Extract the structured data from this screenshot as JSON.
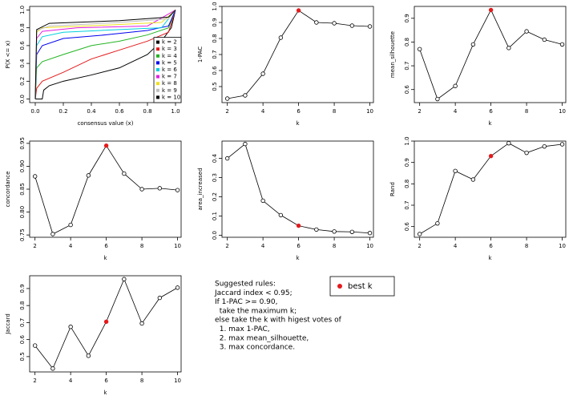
{
  "chart_data": [
    {
      "type": "ecdf",
      "x_label": "consensus value (x)",
      "y_label": "P(X <= x)",
      "xlim": [
        -0.04,
        1.04
      ],
      "ylim": [
        -0.04,
        1.04
      ],
      "xticks": [
        {
          "value": 0,
          "label": "0.0"
        },
        0.2,
        0.4,
        0.6,
        0.8,
        {
          "value": 1,
          "label": "1.0"
        }
      ],
      "yticks": [
        {
          "value": 0,
          "label": "0.0"
        },
        0.2,
        0.4,
        0.6,
        0.8,
        {
          "value": 1,
          "label": "1.0"
        }
      ],
      "legend": "bottomright",
      "series": [
        {
          "name": "k = 2",
          "color": "#000000",
          "x": [
            0,
            0.05,
            0.06,
            0.1,
            0.2,
            0.4,
            0.6,
            0.8,
            0.9,
            0.97,
            1
          ],
          "values": [
            0,
            0,
            0.1,
            0.15,
            0.2,
            0.27,
            0.35,
            0.5,
            0.65,
            0.8,
            1
          ]
        },
        {
          "name": "k = 3",
          "color": "#e41a1c",
          "x": [
            0,
            0.01,
            0.05,
            0.2,
            0.4,
            0.6,
            0.8,
            0.95,
            1
          ],
          "values": [
            0,
            0.12,
            0.2,
            0.3,
            0.45,
            0.55,
            0.65,
            0.75,
            1
          ]
        },
        {
          "name": "k = 4",
          "color": "#22b422",
          "x": [
            0,
            0.01,
            0.05,
            0.2,
            0.4,
            0.6,
            0.8,
            0.95,
            1
          ],
          "values": [
            0,
            0.35,
            0.42,
            0.5,
            0.6,
            0.65,
            0.72,
            0.8,
            1
          ]
        },
        {
          "name": "k = 5",
          "color": "#0000ee",
          "x": [
            0,
            0.01,
            0.05,
            0.2,
            0.5,
            0.8,
            0.95,
            1
          ],
          "values": [
            0,
            0.5,
            0.6,
            0.68,
            0.72,
            0.77,
            0.82,
            1
          ]
        },
        {
          "name": "k = 6",
          "color": "#00d0e0",
          "x": [
            0,
            0.01,
            0.05,
            0.2,
            0.6,
            0.9,
            1
          ],
          "values": [
            0,
            0.6,
            0.7,
            0.75,
            0.78,
            0.8,
            1
          ]
        },
        {
          "name": "k = 7",
          "color": "#e020e0",
          "x": [
            0,
            0.01,
            0.05,
            0.3,
            0.8,
            1
          ],
          "values": [
            0,
            0.68,
            0.76,
            0.8,
            0.82,
            1
          ]
        },
        {
          "name": "k = 8",
          "color": "#f0e020",
          "x": [
            0,
            0.01,
            0.05,
            0.5,
            0.9,
            1
          ],
          "values": [
            0,
            0.75,
            0.8,
            0.83,
            0.86,
            1
          ]
        },
        {
          "name": "k = 9",
          "color": "#bebebe",
          "x": [
            0,
            0.01,
            0.1,
            0.6,
            0.95,
            1
          ],
          "values": [
            0,
            0.77,
            0.82,
            0.86,
            0.9,
            1
          ]
        },
        {
          "name": "k = 10",
          "color": "#000000",
          "x": [
            0,
            0.01,
            0.1,
            0.6,
            0.95,
            1
          ],
          "values": [
            0,
            0.78,
            0.85,
            0.88,
            0.92,
            1
          ]
        }
      ]
    },
    {
      "type": "line",
      "x_label": "k",
      "y_label": "1-PAC",
      "x": [
        2,
        3,
        4,
        5,
        6,
        7,
        8,
        9,
        10
      ],
      "values": [
        0.425,
        0.445,
        0.58,
        0.805,
        0.975,
        0.9,
        0.895,
        0.88,
        0.875
      ],
      "best_k": 6,
      "highlight_color": "#e41a1c",
      "xlim": [
        1.7,
        10.2
      ],
      "ylim": [
        0.4,
        1.0
      ],
      "xticks": [
        2,
        4,
        6,
        8,
        10
      ],
      "yticks": [
        0.5,
        0.6,
        0.7,
        0.8,
        0.9,
        {
          "value": 1,
          "label": "1.0"
        }
      ]
    },
    {
      "type": "line",
      "x_label": "k",
      "y_label": "mean_silhouette",
      "x": [
        2,
        3,
        4,
        5,
        6,
        7,
        8,
        9,
        10
      ],
      "values": [
        0.77,
        0.56,
        0.615,
        0.79,
        0.935,
        0.775,
        0.845,
        0.81,
        0.79
      ],
      "best_k": 6,
      "highlight_color": "#e41a1c",
      "xlim": [
        1.7,
        10.2
      ],
      "ylim": [
        0.545,
        0.95
      ],
      "xticks": [
        2,
        4,
        6,
        8,
        10
      ],
      "yticks": [
        0.6,
        0.7,
        0.8,
        0.9
      ]
    },
    {
      "type": "line",
      "x_label": "k",
      "y_label": "concordance",
      "x": [
        2,
        3,
        4,
        5,
        6,
        7,
        8,
        9,
        10
      ],
      "values": [
        0.878,
        0.752,
        0.772,
        0.88,
        0.945,
        0.884,
        0.85,
        0.852,
        0.848
      ],
      "best_k": 6,
      "highlight_color": "#e41a1c",
      "xlim": [
        1.7,
        10.2
      ],
      "ylim": [
        0.745,
        0.955
      ],
      "xticks": [
        2,
        4,
        6,
        8,
        10
      ],
      "yticks": [
        0.75,
        {
          "value": 0.8,
          "label": "0.80"
        },
        0.85,
        {
          "value": 0.9,
          "label": "0.90"
        },
        0.95
      ]
    },
    {
      "type": "line",
      "x_label": "k",
      "y_label": "area_increased",
      "x": [
        2,
        3,
        4,
        5,
        6,
        7,
        8,
        9,
        10
      ],
      "values": [
        0.4,
        0.475,
        0.18,
        0.105,
        0.05,
        0.03,
        0.02,
        0.018,
        0.012
      ],
      "best_k": 6,
      "highlight_color": "#e41a1c",
      "xlim": [
        1.7,
        10.2
      ],
      "ylim": [
        -0.01,
        0.49
      ],
      "xticks": [
        2,
        4,
        6,
        8,
        10
      ],
      "yticks": [
        {
          "value": 0,
          "label": "0.0"
        },
        0.1,
        0.2,
        0.3,
        0.4
      ]
    },
    {
      "type": "line",
      "x_label": "k",
      "y_label": "Rand",
      "x": [
        2,
        3,
        4,
        5,
        6,
        7,
        8,
        9,
        10
      ],
      "values": [
        0.565,
        0.615,
        0.86,
        0.82,
        0.93,
        0.99,
        0.945,
        0.975,
        0.985
      ],
      "best_k": 6,
      "highlight_color": "#e41a1c",
      "xlim": [
        1.7,
        10.2
      ],
      "ylim": [
        0.55,
        1.0
      ],
      "xticks": [
        2,
        4,
        6,
        8,
        10
      ],
      "yticks": [
        0.6,
        0.7,
        0.8,
        0.9,
        {
          "value": 1,
          "label": "1.0"
        }
      ]
    },
    {
      "type": "line",
      "x_label": "k",
      "y_label": "Jaccard",
      "x": [
        2,
        3,
        4,
        5,
        6,
        7,
        8,
        9,
        10
      ],
      "values": [
        0.565,
        0.43,
        0.675,
        0.505,
        0.705,
        0.955,
        0.695,
        0.845,
        0.905
      ],
      "best_k": 6,
      "highlight_color": "#e41a1c",
      "xlim": [
        1.7,
        10.2
      ],
      "ylim": [
        0.41,
        0.975
      ],
      "xticks": [
        2,
        4,
        6,
        8,
        10
      ],
      "yticks": [
        0.5,
        0.6,
        0.7,
        0.8,
        0.9
      ]
    }
  ],
  "rules": [
    "Suggested rules:",
    "Jaccard index < 0.95;",
    "If 1-PAC >= 0.90,",
    "  take the maximum k;",
    "else take the k with higest votes of",
    "  1. max 1-PAC,",
    "  2. max mean_silhouette,",
    "  3. max concordance."
  ],
  "best_k_legend": {
    "label": "best k",
    "color": "#e41a1c"
  }
}
